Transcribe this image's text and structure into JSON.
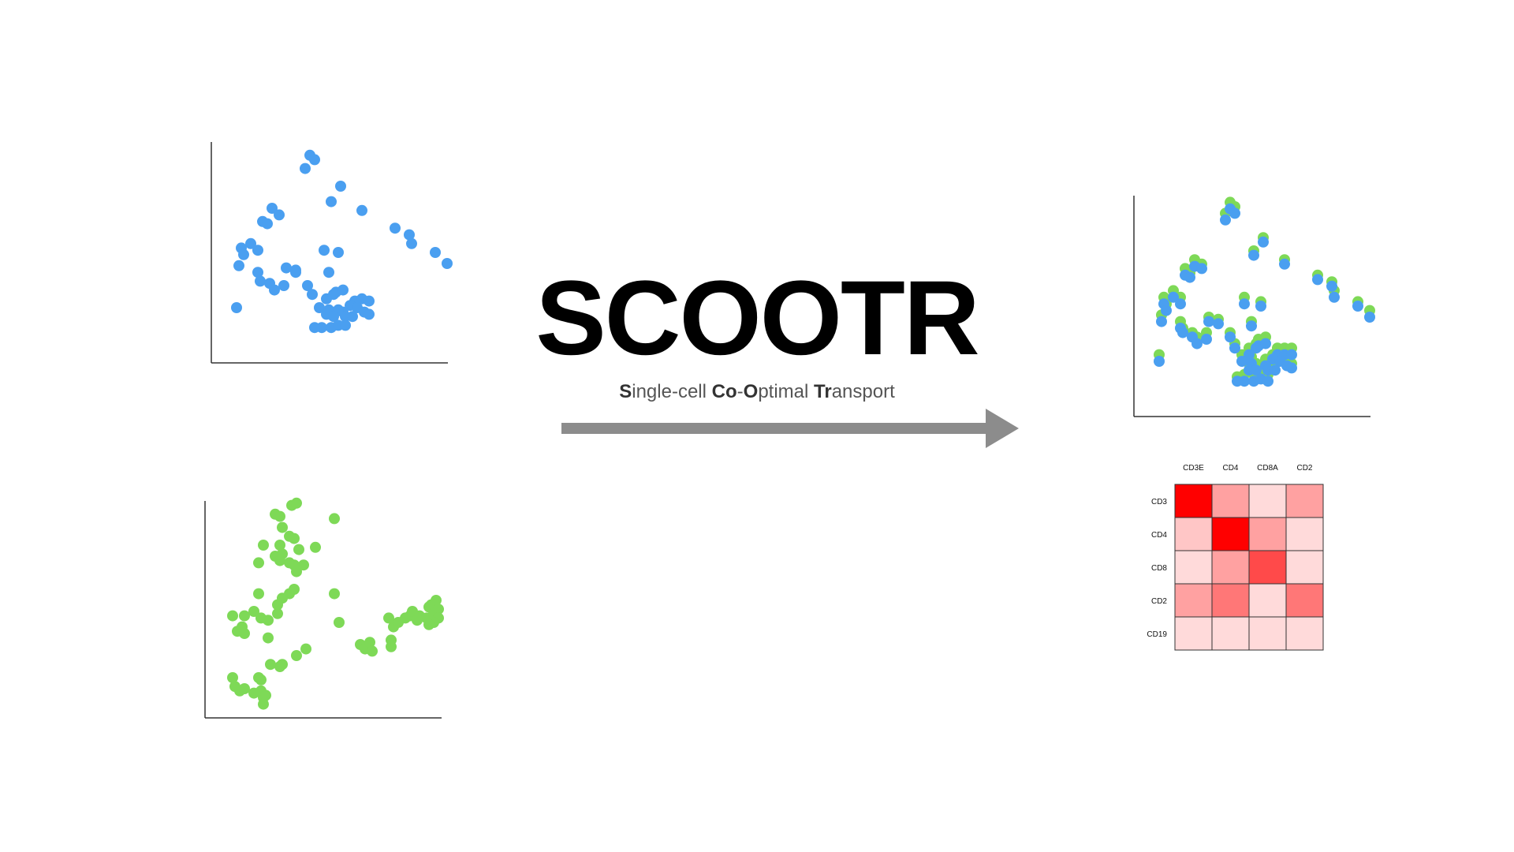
{
  "diagram": {
    "title": "SCOOTR",
    "subtitle_parts": [
      {
        "text": "S",
        "bold": true
      },
      {
        "text": "ingle-cell ",
        "bold": false
      },
      {
        "text": "Co",
        "bold": true
      },
      {
        "text": "-",
        "bold": false
      },
      {
        "text": "O",
        "bold": true
      },
      {
        "text": "ptimal ",
        "bold": false
      },
      {
        "text": "Tr",
        "bold": true
      },
      {
        "text": "ansport",
        "bold": false
      }
    ],
    "colors": {
      "blue": "#4a9ff0",
      "green": "#7ed957",
      "arrow": "#8c8c8c",
      "axis": "#333333"
    }
  },
  "chart_data": [
    {
      "type": "scatter",
      "series": [
        {
          "color": "#4a9ff0",
          "points": [
            [
              0.41,
              0.94
            ],
            [
              0.43,
              0.92
            ],
            [
              0.39,
              0.88
            ],
            [
              0.54,
              0.8
            ],
            [
              0.5,
              0.73
            ],
            [
              0.63,
              0.69
            ],
            [
              0.25,
              0.7
            ],
            [
              0.28,
              0.67
            ],
            [
              0.21,
              0.64
            ],
            [
              0.23,
              0.63
            ],
            [
              0.77,
              0.61
            ],
            [
              0.83,
              0.58
            ],
            [
              0.84,
              0.54
            ],
            [
              0.16,
              0.54
            ],
            [
              0.19,
              0.51
            ],
            [
              0.12,
              0.52
            ],
            [
              0.13,
              0.49
            ],
            [
              0.47,
              0.51
            ],
            [
              0.53,
              0.5
            ],
            [
              0.11,
              0.44
            ],
            [
              0.19,
              0.41
            ],
            [
              0.31,
              0.43
            ],
            [
              0.35,
              0.42
            ],
            [
              0.35,
              0.41
            ],
            [
              0.2,
              0.37
            ],
            [
              0.24,
              0.36
            ],
            [
              0.3,
              0.35
            ],
            [
              0.49,
              0.41
            ],
            [
              0.4,
              0.35
            ],
            [
              0.26,
              0.33
            ],
            [
              0.42,
              0.31
            ],
            [
              0.52,
              0.32
            ],
            [
              0.55,
              0.33
            ],
            [
              0.51,
              0.31
            ],
            [
              0.48,
              0.29
            ],
            [
              0.6,
              0.28
            ],
            [
              0.63,
              0.29
            ],
            [
              0.66,
              0.28
            ],
            [
              0.45,
              0.25
            ],
            [
              0.49,
              0.24
            ],
            [
              0.58,
              0.26
            ],
            [
              0.61,
              0.25
            ],
            [
              0.55,
              0.23
            ],
            [
              0.53,
              0.24
            ],
            [
              0.48,
              0.22
            ],
            [
              0.51,
              0.21
            ],
            [
              0.56,
              0.21
            ],
            [
              0.59,
              0.21
            ],
            [
              0.64,
              0.23
            ],
            [
              0.66,
              0.22
            ],
            [
              0.46,
              0.16
            ],
            [
              0.5,
              0.16
            ],
            [
              0.53,
              0.17
            ],
            [
              0.56,
              0.17
            ],
            [
              0.43,
              0.16
            ],
            [
              0.1,
              0.25
            ],
            [
              0.94,
              0.5
            ],
            [
              0.99,
              0.45
            ]
          ]
        }
      ]
    },
    {
      "type": "scatter",
      "series": [
        {
          "color": "#7ed957",
          "points": [
            [
              0.36,
              0.98
            ],
            [
              0.38,
              0.99
            ],
            [
              0.29,
              0.94
            ],
            [
              0.31,
              0.93
            ],
            [
              0.54,
              0.92
            ],
            [
              0.32,
              0.88
            ],
            [
              0.35,
              0.84
            ],
            [
              0.37,
              0.83
            ],
            [
              0.24,
              0.8
            ],
            [
              0.31,
              0.8
            ],
            [
              0.29,
              0.75
            ],
            [
              0.32,
              0.76
            ],
            [
              0.39,
              0.78
            ],
            [
              0.46,
              0.79
            ],
            [
              0.22,
              0.72
            ],
            [
              0.31,
              0.73
            ],
            [
              0.35,
              0.72
            ],
            [
              0.37,
              0.71
            ],
            [
              0.41,
              0.71
            ],
            [
              0.38,
              0.68
            ],
            [
              0.35,
              0.58
            ],
            [
              0.37,
              0.6
            ],
            [
              0.22,
              0.58
            ],
            [
              0.32,
              0.56
            ],
            [
              0.3,
              0.53
            ],
            [
              0.54,
              0.58
            ],
            [
              0.11,
              0.48
            ],
            [
              0.16,
              0.48
            ],
            [
              0.2,
              0.5
            ],
            [
              0.23,
              0.47
            ],
            [
              0.26,
              0.46
            ],
            [
              0.3,
              0.49
            ],
            [
              0.15,
              0.43
            ],
            [
              0.13,
              0.41
            ],
            [
              0.16,
              0.4
            ],
            [
              0.56,
              0.45
            ],
            [
              0.26,
              0.38
            ],
            [
              0.65,
              0.35
            ],
            [
              0.67,
              0.33
            ],
            [
              0.69,
              0.36
            ],
            [
              0.7,
              0.32
            ],
            [
              0.78,
              0.37
            ],
            [
              0.79,
              0.43
            ],
            [
              0.77,
              0.47
            ],
            [
              0.81,
              0.45
            ],
            [
              0.84,
              0.47
            ],
            [
              0.86,
              0.48
            ],
            [
              0.87,
              0.5
            ],
            [
              0.9,
              0.48
            ],
            [
              0.93,
              0.47
            ],
            [
              0.94,
              0.52
            ],
            [
              0.95,
              0.53
            ],
            [
              0.97,
              0.55
            ],
            [
              0.96,
              0.49
            ],
            [
              0.98,
              0.51
            ],
            [
              0.98,
              0.47
            ],
            [
              0.96,
              0.45
            ],
            [
              0.94,
              0.44
            ],
            [
              0.89,
              0.46
            ],
            [
              0.78,
              0.34
            ],
            [
              0.42,
              0.33
            ],
            [
              0.38,
              0.3
            ],
            [
              0.32,
              0.26
            ],
            [
              0.31,
              0.25
            ],
            [
              0.27,
              0.26
            ],
            [
              0.22,
              0.2
            ],
            [
              0.11,
              0.2
            ],
            [
              0.12,
              0.16
            ],
            [
              0.14,
              0.14
            ],
            [
              0.16,
              0.15
            ],
            [
              0.2,
              0.13
            ],
            [
              0.23,
              0.14
            ],
            [
              0.24,
              0.11
            ],
            [
              0.23,
              0.19
            ],
            [
              0.25,
              0.12
            ],
            [
              0.24,
              0.08
            ]
          ]
        }
      ]
    },
    {
      "type": "scatter",
      "series": [
        {
          "color": "#7ed957",
          "points": [
            [
              0.4,
              0.97
            ],
            [
              0.42,
              0.95
            ],
            [
              0.38,
              0.92
            ],
            [
              0.54,
              0.81
            ],
            [
              0.5,
              0.75
            ],
            [
              0.63,
              0.71
            ],
            [
              0.25,
              0.71
            ],
            [
              0.28,
              0.69
            ],
            [
              0.21,
              0.67
            ],
            [
              0.23,
              0.65
            ],
            [
              0.77,
              0.64
            ],
            [
              0.83,
              0.61
            ],
            [
              0.84,
              0.57
            ],
            [
              0.16,
              0.57
            ],
            [
              0.19,
              0.54
            ],
            [
              0.12,
              0.54
            ],
            [
              0.13,
              0.51
            ],
            [
              0.46,
              0.54
            ],
            [
              0.53,
              0.52
            ],
            [
              0.11,
              0.46
            ],
            [
              0.19,
              0.43
            ],
            [
              0.31,
              0.45
            ],
            [
              0.35,
              0.44
            ],
            [
              0.2,
              0.4
            ],
            [
              0.24,
              0.38
            ],
            [
              0.3,
              0.38
            ],
            [
              0.49,
              0.43
            ],
            [
              0.4,
              0.38
            ],
            [
              0.26,
              0.36
            ],
            [
              0.42,
              0.33
            ],
            [
              0.52,
              0.35
            ],
            [
              0.55,
              0.36
            ],
            [
              0.51,
              0.33
            ],
            [
              0.48,
              0.31
            ],
            [
              0.6,
              0.31
            ],
            [
              0.63,
              0.31
            ],
            [
              0.66,
              0.31
            ],
            [
              0.45,
              0.28
            ],
            [
              0.49,
              0.27
            ],
            [
              0.58,
              0.28
            ],
            [
              0.61,
              0.27
            ],
            [
              0.55,
              0.26
            ],
            [
              0.48,
              0.24
            ],
            [
              0.51,
              0.24
            ],
            [
              0.56,
              0.24
            ],
            [
              0.59,
              0.24
            ],
            [
              0.64,
              0.25
            ],
            [
              0.66,
              0.24
            ],
            [
              0.46,
              0.19
            ],
            [
              0.5,
              0.19
            ],
            [
              0.53,
              0.2
            ],
            [
              0.56,
              0.19
            ],
            [
              0.43,
              0.18
            ],
            [
              0.1,
              0.28
            ],
            [
              0.94,
              0.52
            ],
            [
              0.99,
              0.48
            ]
          ]
        },
        {
          "color": "#4a9ff0",
          "points": [
            [
              0.4,
              0.94
            ],
            [
              0.42,
              0.92
            ],
            [
              0.38,
              0.89
            ],
            [
              0.54,
              0.79
            ],
            [
              0.5,
              0.73
            ],
            [
              0.63,
              0.69
            ],
            [
              0.25,
              0.68
            ],
            [
              0.28,
              0.67
            ],
            [
              0.21,
              0.64
            ],
            [
              0.23,
              0.63
            ],
            [
              0.77,
              0.62
            ],
            [
              0.83,
              0.59
            ],
            [
              0.84,
              0.54
            ],
            [
              0.16,
              0.54
            ],
            [
              0.19,
              0.51
            ],
            [
              0.12,
              0.51
            ],
            [
              0.13,
              0.48
            ],
            [
              0.46,
              0.51
            ],
            [
              0.53,
              0.5
            ],
            [
              0.11,
              0.43
            ],
            [
              0.19,
              0.4
            ],
            [
              0.31,
              0.43
            ],
            [
              0.35,
              0.42
            ],
            [
              0.2,
              0.38
            ],
            [
              0.24,
              0.36
            ],
            [
              0.3,
              0.35
            ],
            [
              0.49,
              0.41
            ],
            [
              0.4,
              0.36
            ],
            [
              0.26,
              0.33
            ],
            [
              0.42,
              0.31
            ],
            [
              0.52,
              0.32
            ],
            [
              0.55,
              0.33
            ],
            [
              0.51,
              0.31
            ],
            [
              0.48,
              0.28
            ],
            [
              0.6,
              0.28
            ],
            [
              0.63,
              0.28
            ],
            [
              0.66,
              0.28
            ],
            [
              0.45,
              0.25
            ],
            [
              0.49,
              0.24
            ],
            [
              0.58,
              0.26
            ],
            [
              0.61,
              0.25
            ],
            [
              0.55,
              0.23
            ],
            [
              0.48,
              0.21
            ],
            [
              0.51,
              0.21
            ],
            [
              0.56,
              0.21
            ],
            [
              0.59,
              0.21
            ],
            [
              0.64,
              0.23
            ],
            [
              0.66,
              0.22
            ],
            [
              0.46,
              0.16
            ],
            [
              0.5,
              0.16
            ],
            [
              0.53,
              0.17
            ],
            [
              0.56,
              0.16
            ],
            [
              0.43,
              0.16
            ],
            [
              0.1,
              0.25
            ],
            [
              0.94,
              0.5
            ],
            [
              0.99,
              0.45
            ]
          ]
        }
      ]
    },
    {
      "type": "heatmap",
      "columns": [
        "CD3E",
        "CD4",
        "CD8A",
        "CD2"
      ],
      "rows": [
        "CD3",
        "CD4",
        "CD8",
        "CD2",
        "CD19"
      ],
      "values": [
        [
          1.0,
          0.35,
          0.12,
          0.35
        ],
        [
          0.2,
          1.0,
          0.35,
          0.12
        ],
        [
          0.12,
          0.35,
          0.7,
          0.12
        ],
        [
          0.35,
          0.52,
          0.12,
          0.52
        ],
        [
          0.12,
          0.12,
          0.12,
          0.12
        ]
      ]
    }
  ]
}
